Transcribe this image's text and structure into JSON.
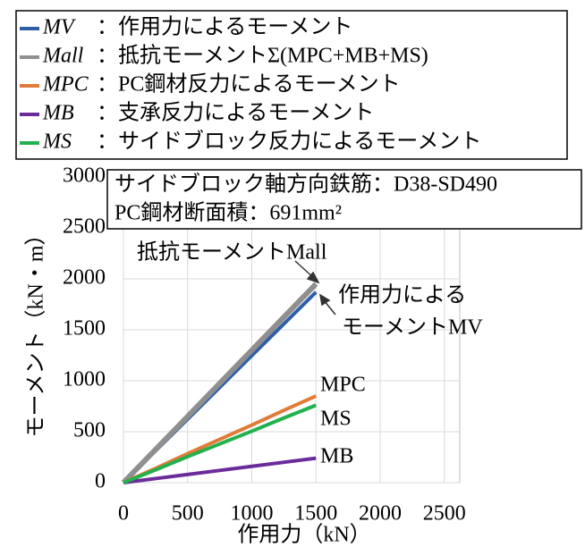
{
  "chart_data": {
    "type": "line",
    "x_label": "作用力（kN）",
    "y_label": "モーメント（kN・m）",
    "x": [
      0,
      250,
      500,
      750,
      1000,
      1250,
      1500
    ],
    "series": [
      {
        "name": "MV",
        "label": "：作用力によるモーメント",
        "color": "#2f5fa8",
        "values": [
          0,
          312,
          623,
          935,
          1247,
          1558,
          1870
        ]
      },
      {
        "name": "Mall",
        "label": "：抵抗モーメントΣ(MPC+MB+MS)",
        "color": "#8f8f8f",
        "values": [
          0,
          325,
          650,
          975,
          1300,
          1625,
          1950
        ]
      },
      {
        "name": "MPC",
        "label": "：PC鋼材反力によるモーメント",
        "color": "#e07b39",
        "values": [
          0,
          140,
          285,
          425,
          565,
          710,
          850
        ]
      },
      {
        "name": "MB",
        "label": "：支承反力によるモーメント",
        "color": "#6a2c9a",
        "values": [
          0,
          40,
          80,
          120,
          160,
          200,
          240
        ]
      },
      {
        "name": "MS",
        "label": "：サイドブロック反力によるモーメント",
        "color": "#22b14c",
        "values": [
          0,
          125,
          255,
          380,
          505,
          635,
          760
        ]
      }
    ],
    "info": [
      "サイドブロック軸方向鉄筋：D38-SD490",
      "PC鋼材断面積：691mm²"
    ],
    "annotations": [
      "抵抗モーメントMall",
      "作用力による",
      "モーメントMV",
      "MPC",
      "MS",
      "MB"
    ],
    "xlim": [
      0,
      2620
    ],
    "ylim": [
      0,
      3000
    ],
    "xticks": [
      0,
      500,
      1000,
      1500,
      2000,
      2500
    ],
    "yticks": [
      0,
      500,
      1000,
      1500,
      2000,
      2500,
      3000
    ],
    "grid": true
  }
}
